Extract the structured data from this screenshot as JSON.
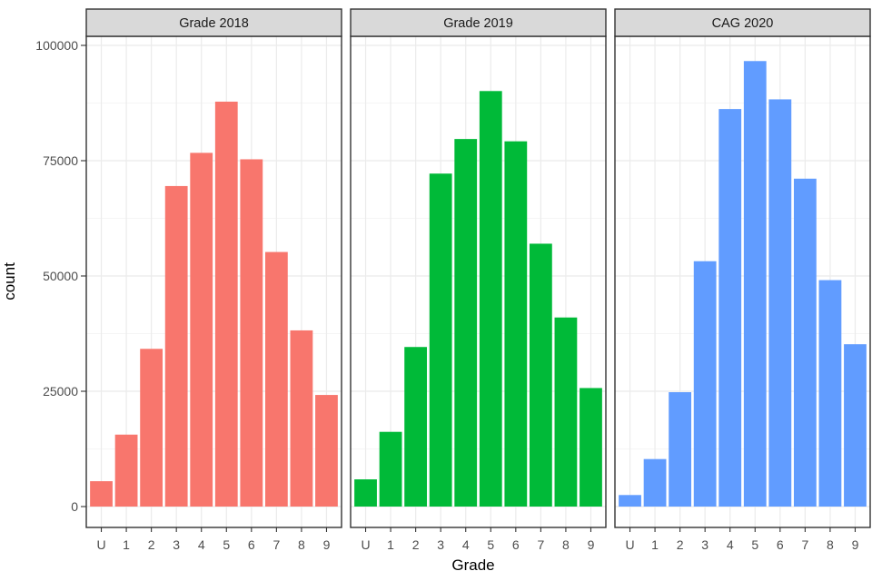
{
  "chart_data": {
    "type": "bar",
    "layout": "facet_wrap",
    "xlabel": "Grade",
    "ylabel": "count",
    "ylim": [
      0,
      100000
    ],
    "y_ticks": [
      0,
      25000,
      50000,
      75000,
      100000
    ],
    "y_tick_labels": [
      "0",
      "25000",
      "50000",
      "75000",
      "100000"
    ],
    "categories": [
      "U",
      "1",
      "2",
      "3",
      "4",
      "5",
      "6",
      "7",
      "8",
      "9"
    ],
    "grid": true,
    "legend": "none",
    "panels": [
      {
        "title": "Grade 2018",
        "color": "#F8766D",
        "values": [
          5500,
          15600,
          34200,
          69500,
          76700,
          87800,
          75300,
          55200,
          38200,
          24200
        ]
      },
      {
        "title": "Grade 2019",
        "color": "#00BA38",
        "values": [
          5900,
          16200,
          34600,
          72200,
          79700,
          90100,
          79200,
          57000,
          41000,
          25700
        ]
      },
      {
        "title": "CAG 2020",
        "color": "#619CFF",
        "values": [
          2500,
          10300,
          24800,
          53200,
          86200,
          96600,
          88300,
          71100,
          49100,
          35200
        ]
      }
    ]
  }
}
